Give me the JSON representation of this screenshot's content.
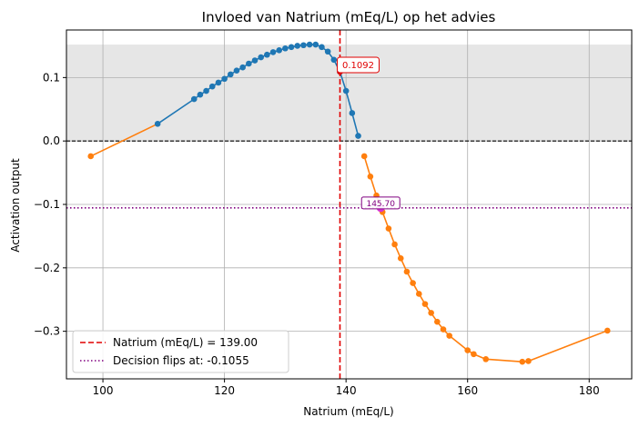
{
  "chart_data": {
    "type": "line",
    "title": "Invloed van Natrium (mEq/L) op het advies",
    "xlabel": "Natrium (mEq/L)",
    "ylabel": "Activation output",
    "xlim": [
      94,
      187
    ],
    "ylim": [
      -0.375,
      0.175
    ],
    "xticks": [
      100,
      120,
      140,
      160,
      180
    ],
    "yticks": [
      0.1,
      0.0,
      -0.1,
      -0.2,
      -0.3
    ],
    "xtick_labels": [
      "100",
      "120",
      "140",
      "160",
      "180"
    ],
    "ytick_labels": [
      "0.1",
      "0.0",
      "−0.1",
      "−0.2",
      "−0.3"
    ],
    "grid": true,
    "shaded_band": [
      0.0,
      0.152
    ],
    "series": [
      {
        "color": "#1f77b4",
        "marker": "circle",
        "points": [
          [
            98,
            -0.024
          ],
          [
            109,
            0.027
          ],
          [
            115,
            0.066
          ],
          [
            116,
            0.073
          ],
          [
            117,
            0.079
          ],
          [
            118,
            0.086
          ],
          [
            119,
            0.092
          ],
          [
            120,
            0.098
          ],
          [
            121,
            0.105
          ],
          [
            122,
            0.111
          ],
          [
            123,
            0.116
          ],
          [
            124,
            0.122
          ],
          [
            125,
            0.127
          ],
          [
            126,
            0.132
          ],
          [
            127,
            0.136
          ],
          [
            128,
            0.14
          ],
          [
            129,
            0.143
          ],
          [
            130,
            0.146
          ],
          [
            131,
            0.148
          ],
          [
            132,
            0.15
          ],
          [
            133,
            0.151
          ],
          [
            134,
            0.152
          ],
          [
            135,
            0.152
          ],
          [
            136,
            0.148
          ],
          [
            137,
            0.141
          ],
          [
            138,
            0.128
          ],
          [
            139,
            0.1092
          ],
          [
            140,
            0.079
          ],
          [
            141,
            0.044
          ],
          [
            142,
            0.008
          ]
        ],
        "color_below_zero": "#ff7f0e"
      },
      {
        "color": "#ff7f0e",
        "marker": "circle",
        "points": [
          [
            143,
            -0.024
          ],
          [
            144,
            -0.056
          ],
          [
            145,
            -0.086
          ],
          [
            146,
            -0.112
          ],
          [
            147,
            -0.138
          ],
          [
            148,
            -0.163
          ],
          [
            149,
            -0.185
          ],
          [
            150,
            -0.206
          ],
          [
            151,
            -0.224
          ],
          [
            152,
            -0.241
          ],
          [
            153,
            -0.257
          ],
          [
            154,
            -0.271
          ],
          [
            155,
            -0.285
          ],
          [
            156,
            -0.297
          ],
          [
            157,
            -0.307
          ],
          [
            160,
            -0.33
          ],
          [
            161,
            -0.336
          ],
          [
            163,
            -0.344
          ],
          [
            169,
            -0.348
          ],
          [
            170,
            -0.347
          ],
          [
            183,
            -0.299
          ]
        ]
      }
    ],
    "vline": {
      "x": 139.0,
      "color": "#e00000",
      "style": "dashed",
      "label": "Natrium (mEq/L) = 139.00"
    },
    "hline_zero": {
      "y": 0.0,
      "color": "#000000",
      "style": "dashed"
    },
    "hline_threshold": {
      "y": -0.1055,
      "color": "#800080",
      "style": "dotted",
      "label": "Decision flips at: -0.1055"
    },
    "annotations": [
      {
        "text": "0.1092",
        "x": 139.0,
        "y": 0.1092,
        "color": "#e00000"
      },
      {
        "text": "145.70",
        "x": 145.7,
        "y": -0.1055,
        "color": "#800080"
      }
    ],
    "legend_position": "lower-left"
  }
}
